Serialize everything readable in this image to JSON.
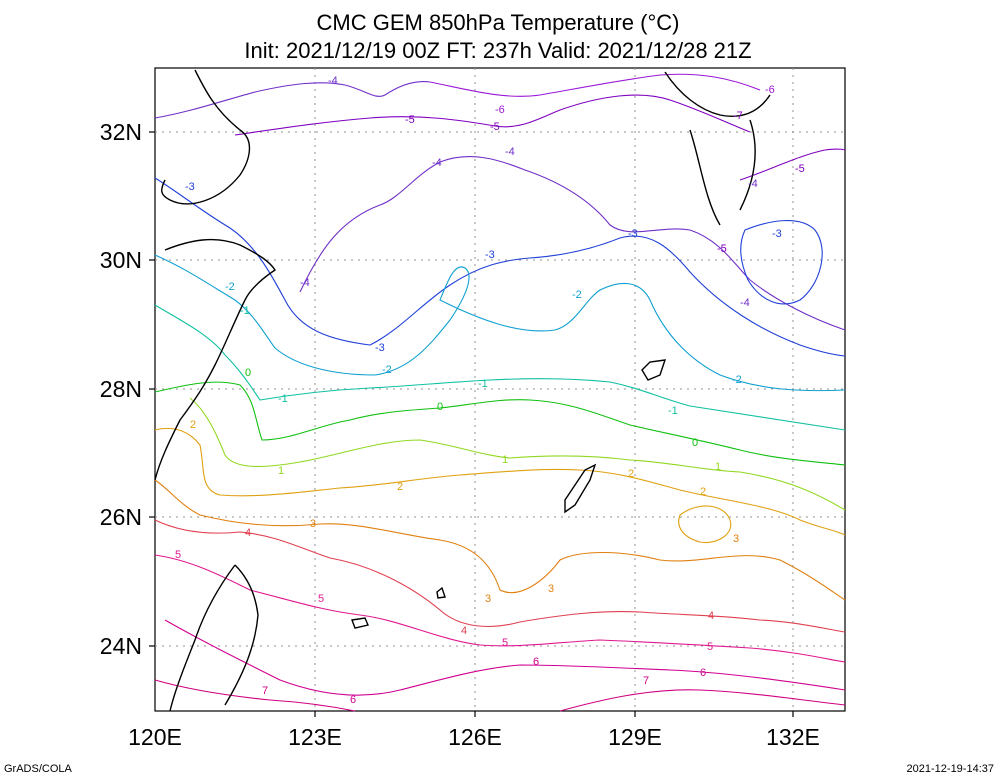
{
  "title": {
    "line1": "CMC GEM 850hPa Temperature (°C)",
    "line2": "Init: 2021/12/19 00Z  FT: 237h  Valid: 2021/12/28 21Z"
  },
  "axes": {
    "x_ticks": [
      "120E",
      "123E",
      "126E",
      "129E",
      "132E"
    ],
    "y_ticks": [
      "32N",
      "30N",
      "28N",
      "26N",
      "24N"
    ]
  },
  "footer": {
    "left": "GrADS/COLA",
    "right": "2021-12-19-14:37"
  },
  "contour_labels": {
    "n7": "-7",
    "n6": "-6",
    "n5": "-5",
    "n4": "-4",
    "n3": "-3",
    "n2": "-2",
    "n1": "-1",
    "z0": "0",
    "p1": "1",
    "p2": "2",
    "p3": "3",
    "p4": "4",
    "p5": "5",
    "p6": "6",
    "p7": "7"
  },
  "colors": {
    "n7": "#8a00c8",
    "n6": "#9a18d8",
    "n5": "#8000c0",
    "n4": "#7030c8",
    "n3": "#2040d8",
    "n2": "#10a0d0",
    "n1": "#10c0a0",
    "z0": "#10c010",
    "p1": "#90d820",
    "p2": "#e0a010",
    "p3": "#e08010",
    "p4": "#e04050",
    "p5": "#e01890",
    "p6": "#d00090",
    "p7": "#d00080",
    "coast": "#000000",
    "grid": "#909090"
  }
}
